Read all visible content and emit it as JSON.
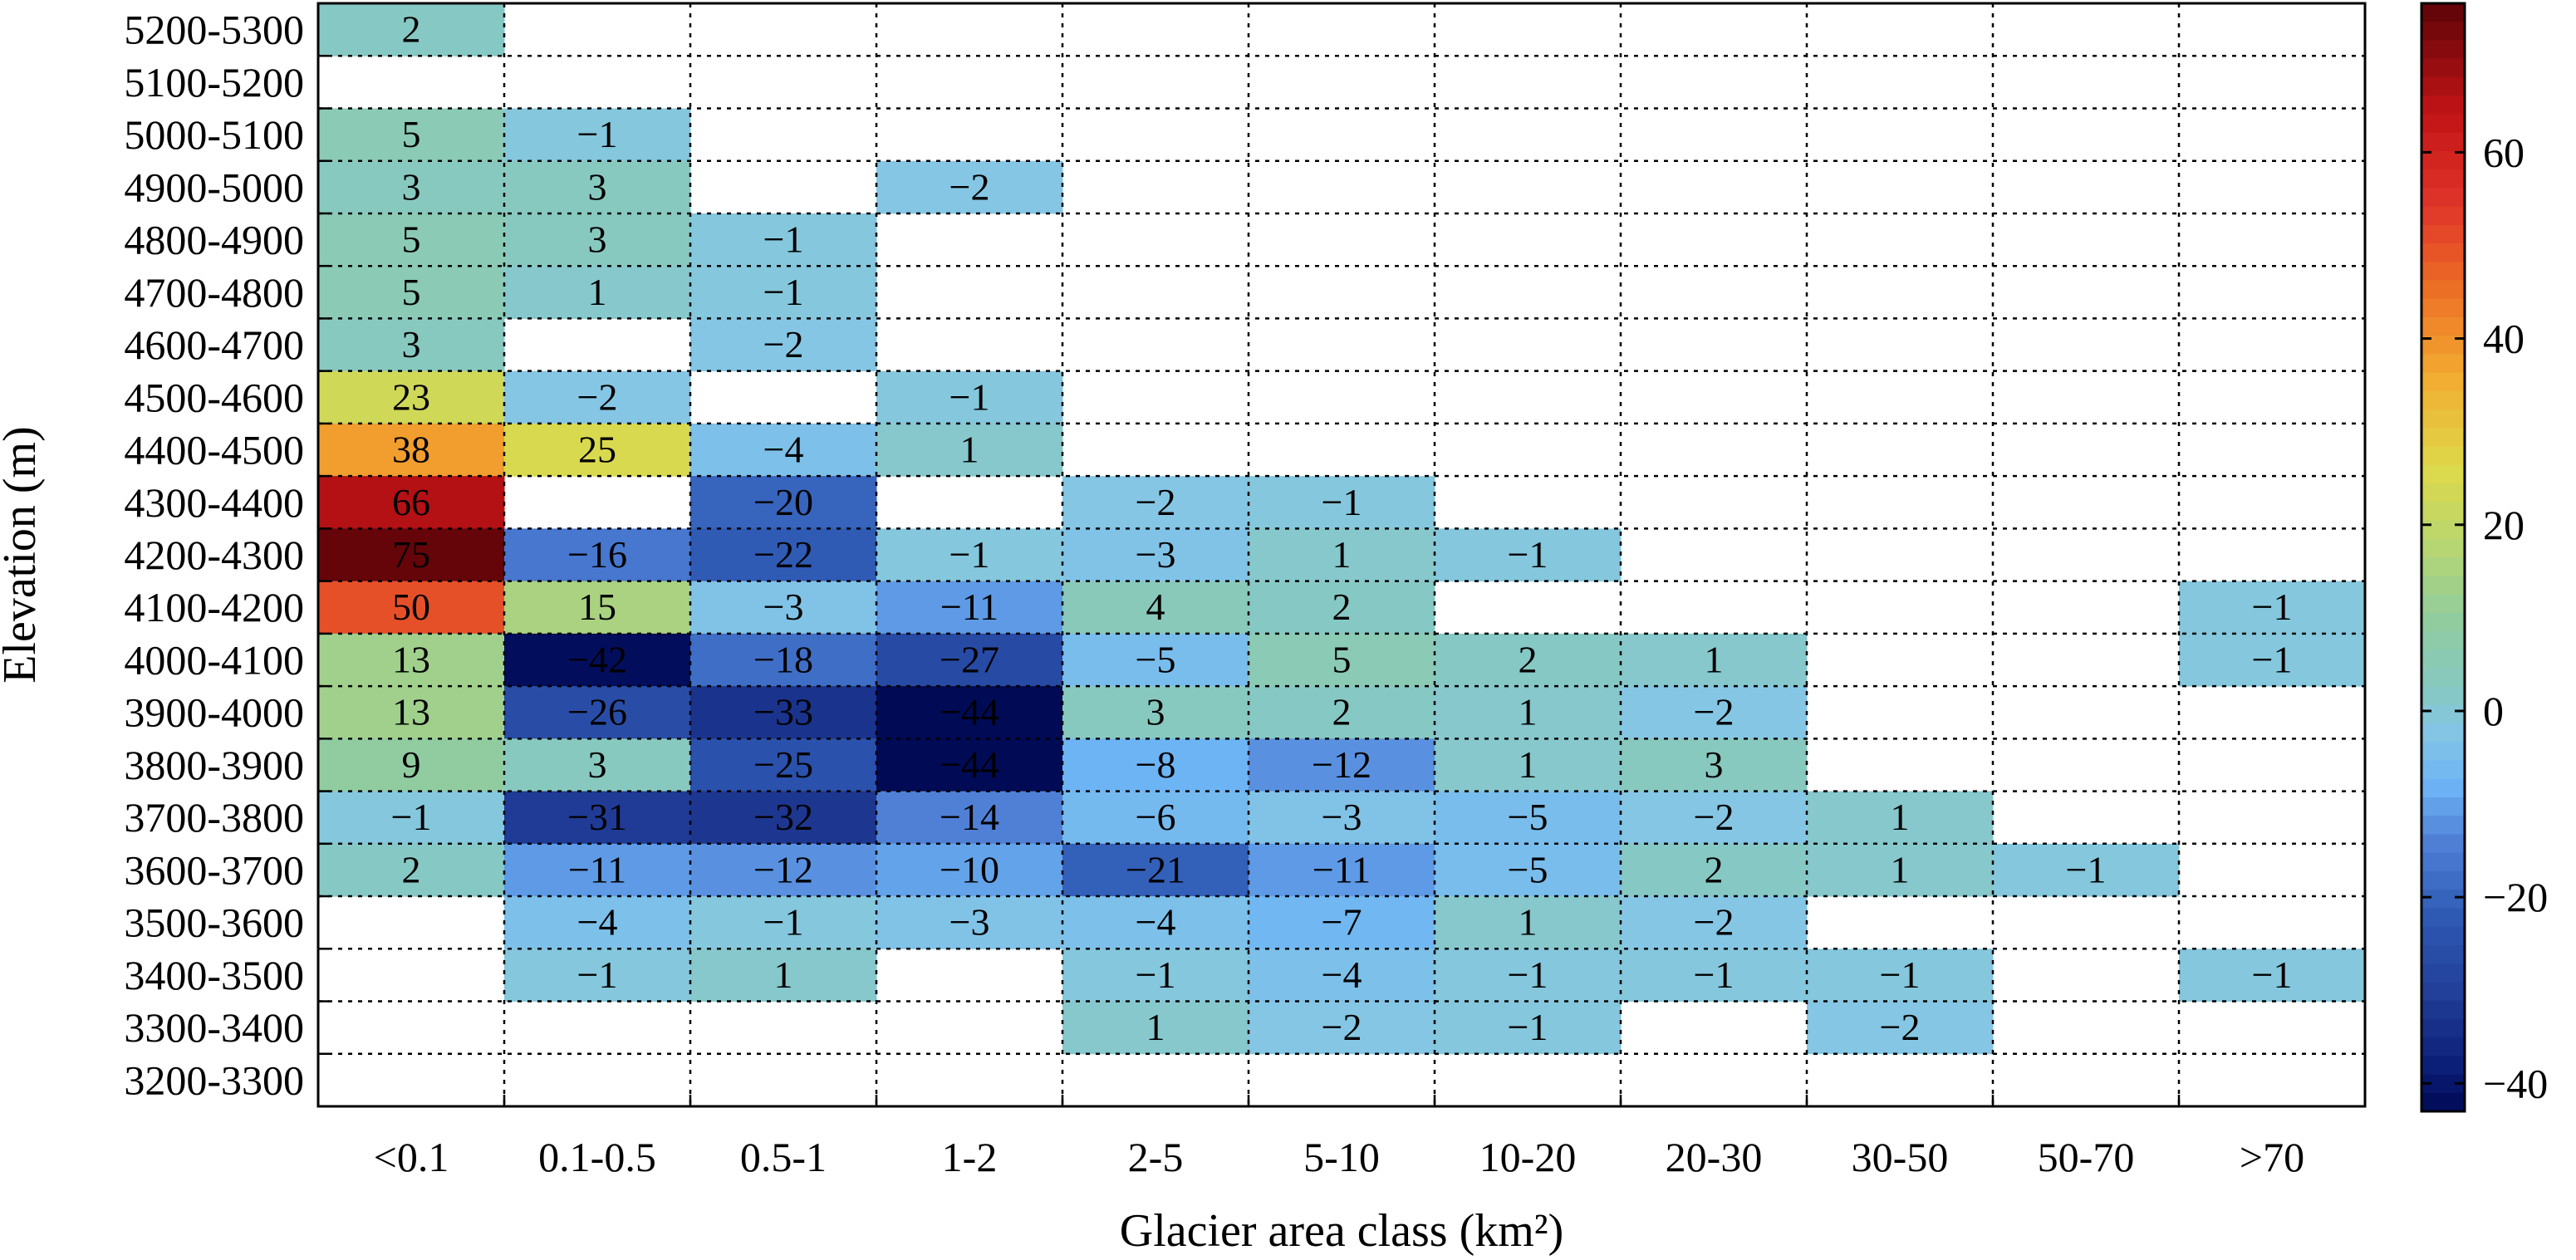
{
  "chart_data": {
    "type": "heatmap",
    "title": "",
    "xlabel": "Glacier area class (km²)",
    "ylabel": "Elevation (m)",
    "x_categories": [
      "<0.1",
      "0.1-0.5",
      "0.5-1",
      "1-2",
      "2-5",
      "5-10",
      "10-20",
      "20-30",
      "30-50",
      "50-70",
      ">70"
    ],
    "y_categories": [
      "5200-5300",
      "5100-5200",
      "5000-5100",
      "4900-5000",
      "4800-4900",
      "4700-4800",
      "4600-4700",
      "4500-4600",
      "4400-4500",
      "4300-4400",
      "4200-4300",
      "4100-4200",
      "4000-4100",
      "3900-4000",
      "3800-3900",
      "3700-3800",
      "3600-3700",
      "3500-3600",
      "3400-3500",
      "3300-3400",
      "3200-3300"
    ],
    "values": [
      [
        2,
        null,
        null,
        null,
        null,
        null,
        null,
        null,
        null,
        null,
        null
      ],
      [
        null,
        null,
        null,
        null,
        null,
        null,
        null,
        null,
        null,
        null,
        null
      ],
      [
        5,
        -1,
        null,
        null,
        null,
        null,
        null,
        null,
        null,
        null,
        null
      ],
      [
        3,
        3,
        null,
        -2,
        null,
        null,
        null,
        null,
        null,
        null,
        null
      ],
      [
        5,
        3,
        -1,
        null,
        null,
        null,
        null,
        null,
        null,
        null,
        null
      ],
      [
        5,
        1,
        -1,
        null,
        null,
        null,
        null,
        null,
        null,
        null,
        null
      ],
      [
        3,
        null,
        -2,
        null,
        null,
        null,
        null,
        null,
        null,
        null,
        null
      ],
      [
        23,
        -2,
        null,
        -1,
        null,
        null,
        null,
        null,
        null,
        null,
        null
      ],
      [
        38,
        25,
        -4,
        1,
        null,
        null,
        null,
        null,
        null,
        null,
        null
      ],
      [
        66,
        null,
        -20,
        null,
        -2,
        -1,
        null,
        null,
        null,
        null,
        null
      ],
      [
        75,
        -16,
        -22,
        -1,
        -3,
        1,
        -1,
        null,
        null,
        null,
        null
      ],
      [
        50,
        15,
        -3,
        -11,
        4,
        2,
        null,
        null,
        null,
        null,
        -1
      ],
      [
        13,
        -42,
        -18,
        -27,
        -5,
        5,
        2,
        1,
        null,
        null,
        -1
      ],
      [
        13,
        -26,
        -33,
        -44,
        3,
        2,
        1,
        -2,
        null,
        null,
        null
      ],
      [
        9,
        3,
        -25,
        -44,
        -8,
        -12,
        1,
        3,
        null,
        null,
        null
      ],
      [
        -1,
        -31,
        -32,
        -14,
        -6,
        -3,
        -5,
        -2,
        1,
        null,
        null
      ],
      [
        2,
        -11,
        -12,
        -10,
        -21,
        -11,
        -5,
        2,
        1,
        -1,
        null
      ],
      [
        null,
        -4,
        -1,
        -3,
        -4,
        -7,
        1,
        -2,
        null,
        null,
        null
      ],
      [
        null,
        -1,
        1,
        null,
        -1,
        -4,
        -1,
        -1,
        -1,
        null,
        -1
      ],
      [
        null,
        null,
        null,
        null,
        1,
        -2,
        -1,
        null,
        -2,
        null,
        null
      ],
      [
        null,
        null,
        null,
        null,
        null,
        null,
        null,
        null,
        null,
        null,
        null
      ]
    ],
    "colorbar": {
      "range": [
        -43,
        76
      ],
      "ticks": [
        -40,
        -20,
        0,
        20,
        40,
        60
      ],
      "tick_labels": [
        "−40",
        "−20",
        "0",
        "20",
        "40",
        "60"
      ],
      "colormap": "jet-like (navy → blue → light blue → teal → green → yellow → orange → red → dark red)"
    },
    "grid": "dotted",
    "legend": "colorbar right"
  }
}
